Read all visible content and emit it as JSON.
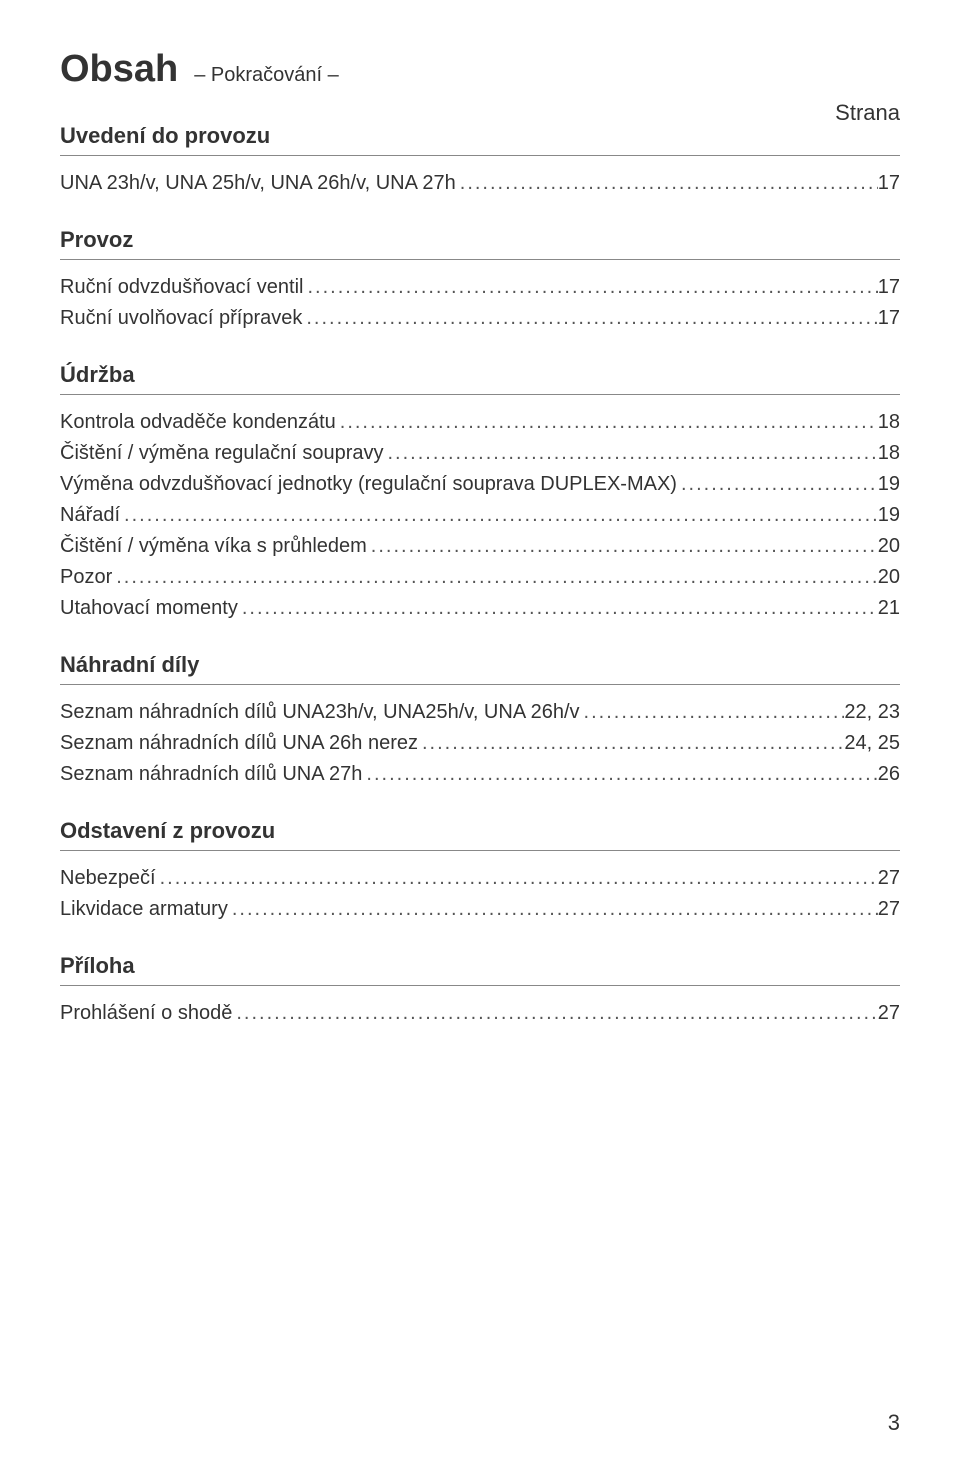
{
  "title": {
    "main": "Obsah",
    "sub": "– Pokračování –"
  },
  "page_col_label": "Strana",
  "sections": [
    {
      "heading": "Uvedení do provozu",
      "rows": [
        {
          "label": "UNA 23h/v, UNA 25h/v, UNA 26h/v, UNA 27h",
          "page": "17"
        }
      ]
    },
    {
      "heading": "Provoz",
      "rows": [
        {
          "label": "Ruční odvzdušňovací ventil",
          "page": "17"
        },
        {
          "label": "Ruční uvolňovací přípravek",
          "page": "17"
        }
      ]
    },
    {
      "heading": "Údržba",
      "rows": [
        {
          "label": "Kontrola odvaděče kondenzátu",
          "page": "18"
        },
        {
          "label": "Čištění / výměna regulační soupravy",
          "page": "18"
        },
        {
          "label": "Výměna odvzdušňovací jednotky (regulační souprava DUPLEX-MAX)",
          "page": "19"
        },
        {
          "label": "Nářadí",
          "page": "19"
        },
        {
          "label": "Čištění / výměna víka s průhledem",
          "page": "20"
        },
        {
          "label": "Pozor",
          "page": "20"
        },
        {
          "label": "Utahovací momenty",
          "page": "21"
        }
      ]
    },
    {
      "heading": "Náhradní díly",
      "rows": [
        {
          "label": "Seznam náhradních dílů UNA23h/v, UNA25h/v, UNA 26h/v",
          "page": "22, 23"
        },
        {
          "label": "Seznam náhradních dílů UNA 26h nerez",
          "page": "24, 25"
        },
        {
          "label": "Seznam náhradních dílů UNA 27h",
          "page": "26"
        }
      ]
    },
    {
      "heading": "Odstavení z provozu",
      "rows": [
        {
          "label": "Nebezpečí",
          "page": "27"
        },
        {
          "label": "Likvidace armatury",
          "page": "27"
        }
      ]
    },
    {
      "heading": "Příloha",
      "rows": [
        {
          "label": "Prohlášení o shodě",
          "page": "27"
        }
      ]
    }
  ],
  "page_number": "3",
  "colors": {
    "text": "#333333",
    "leader": "#555555",
    "rule": "#888888",
    "background": "#ffffff"
  },
  "typography": {
    "title_main_fontsize": 38,
    "title_sub_fontsize": 20,
    "heading_fontsize": 22,
    "row_fontsize": 20,
    "page_number_fontsize": 22
  }
}
